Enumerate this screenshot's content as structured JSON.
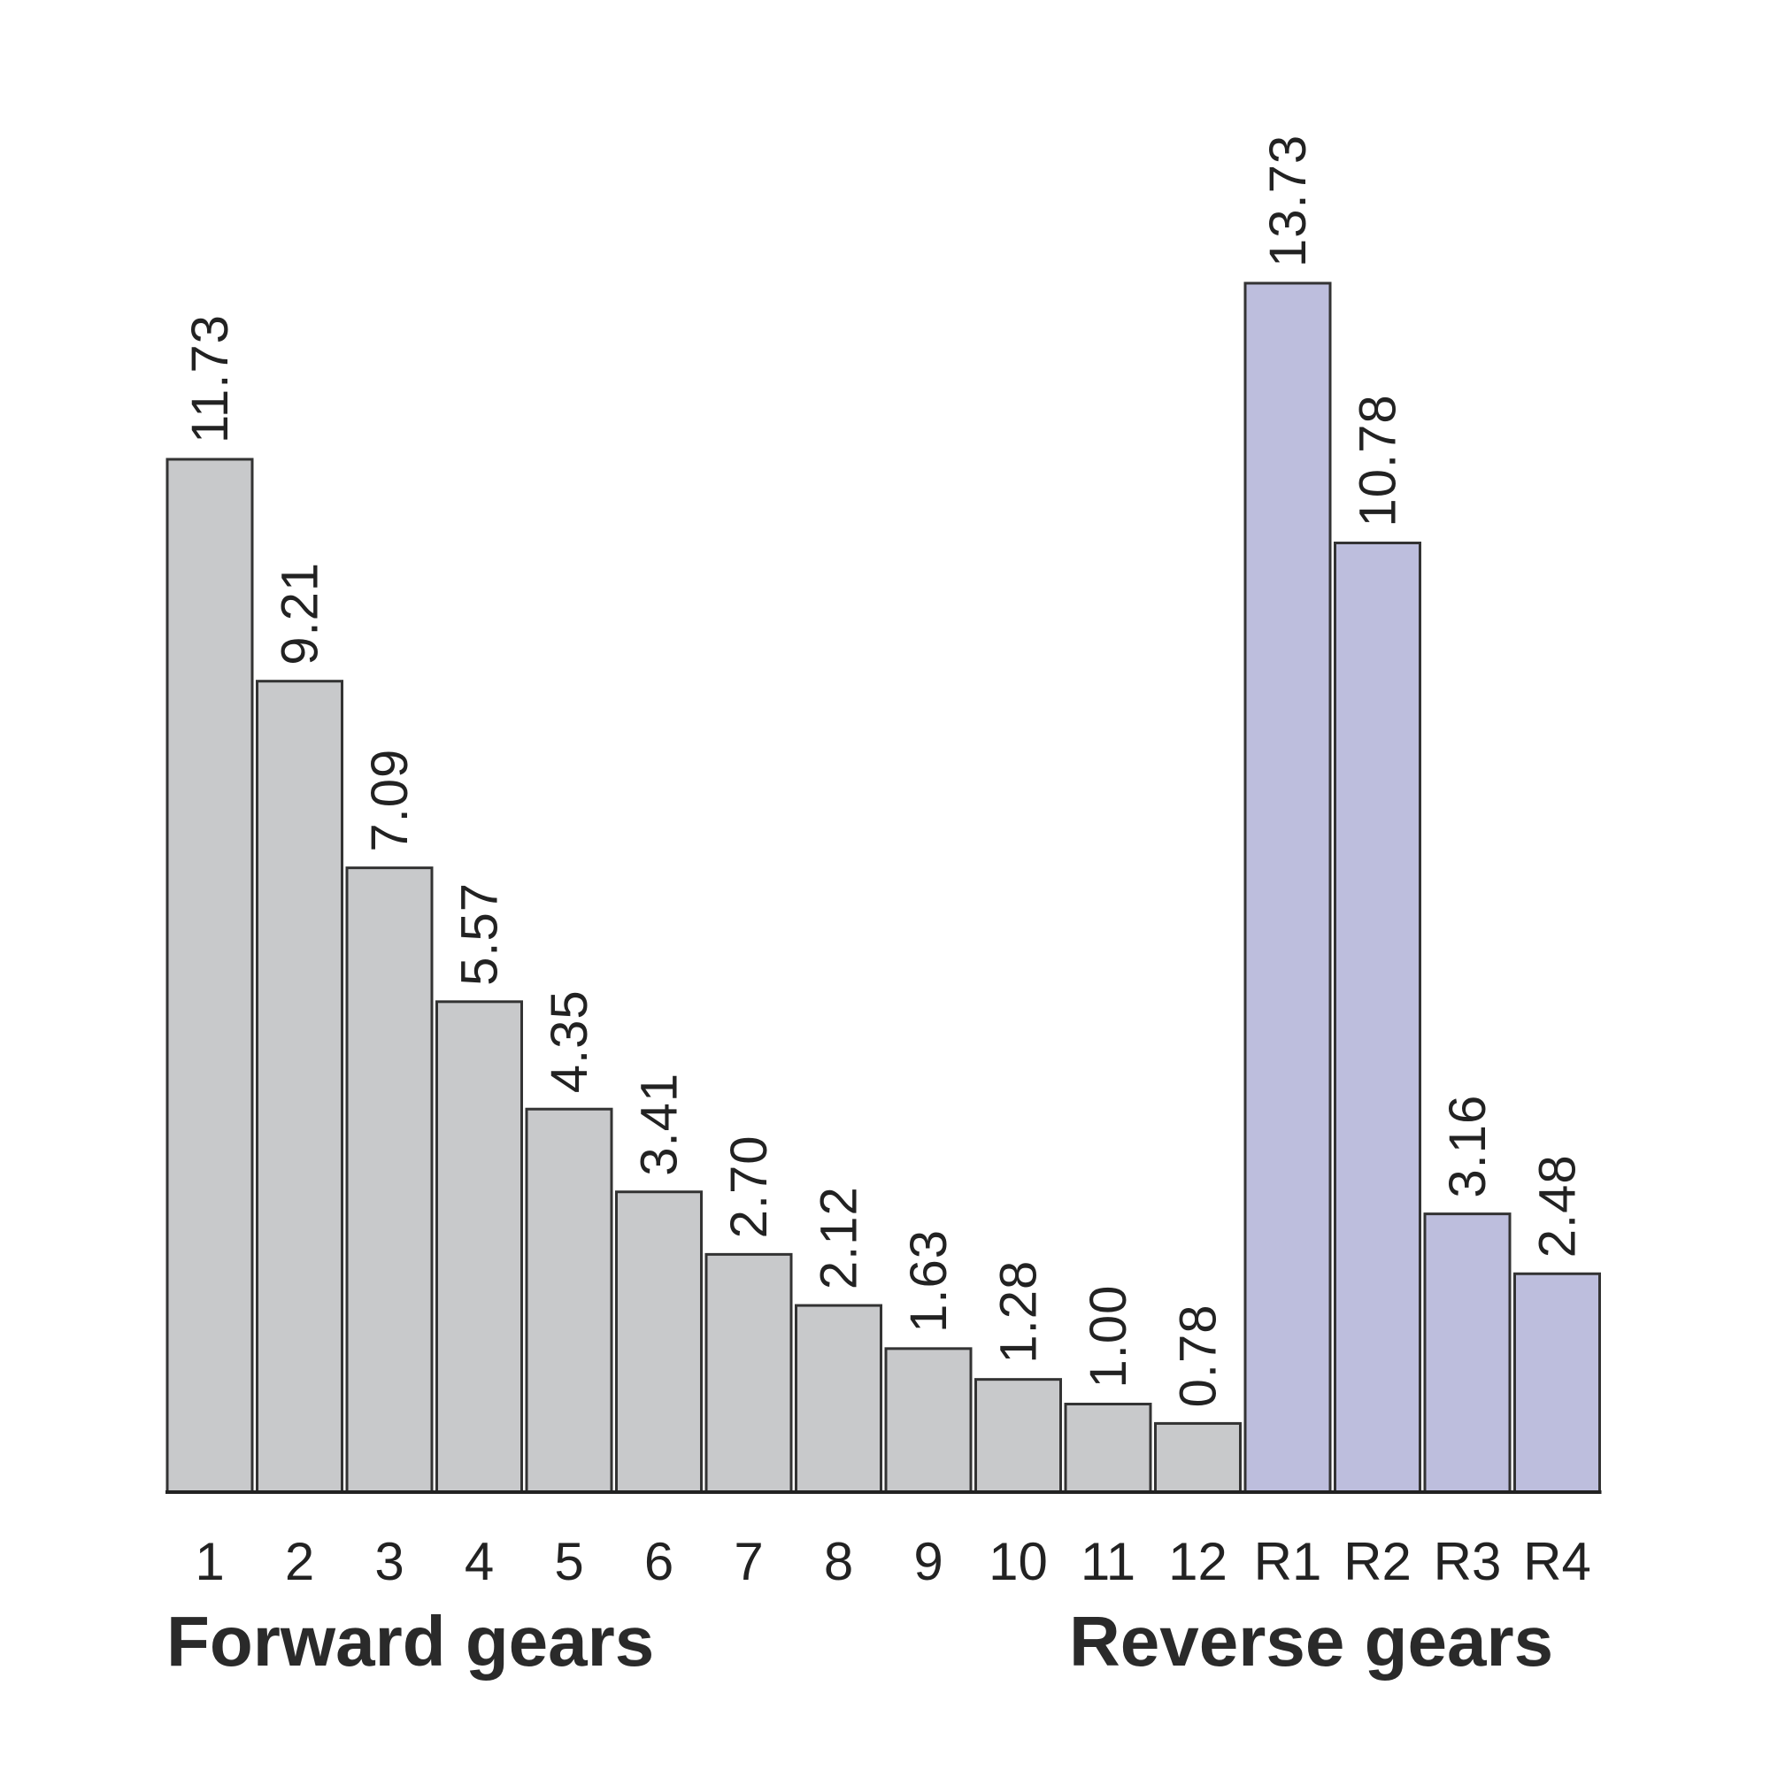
{
  "chart_data": {
    "type": "bar",
    "categories": [
      "1",
      "2",
      "3",
      "4",
      "5",
      "6",
      "7",
      "8",
      "9",
      "10",
      "11",
      "12",
      "R1",
      "R2",
      "R3",
      "R4"
    ],
    "values": [
      11.73,
      9.21,
      7.09,
      5.57,
      4.35,
      3.41,
      2.7,
      2.12,
      1.63,
      1.28,
      1.0,
      0.78,
      13.73,
      10.78,
      3.16,
      2.48
    ],
    "value_labels": [
      "11.73",
      "9.21",
      "7.09",
      "5.57",
      "4.35",
      "3.41",
      "2.70",
      "2.12",
      "1.63",
      "1.28",
      "1.00",
      "0.78",
      "13.73",
      "10.78",
      "3.16",
      "2.48"
    ],
    "series": [
      {
        "name": "Forward gears",
        "categories": [
          "1",
          "2",
          "3",
          "4",
          "5",
          "6",
          "7",
          "8",
          "9",
          "10",
          "11",
          "12"
        ],
        "color": "#c8c9cb"
      },
      {
        "name": "Reverse gears",
        "categories": [
          "R1",
          "R2",
          "R3",
          "R4"
        ],
        "color": "#bdbedd"
      }
    ],
    "group_labels": {
      "forward": "Forward gears",
      "reverse": "Reverse gears"
    },
    "ylim": [
      0,
      13.73
    ],
    "grid": false,
    "bar_edge_color": "#333333",
    "axis_color": "#222222"
  }
}
